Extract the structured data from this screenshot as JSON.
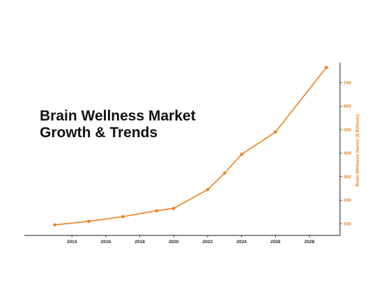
{
  "chart_data": {
    "type": "line",
    "title_lines": [
      "Brain Wellness Market",
      "Growth & Trends"
    ],
    "xlabel": "",
    "ylabel": "Brain Wellness Sector ($ Billions)",
    "x": [
      2013,
      2015,
      2017,
      2019,
      2020,
      2022,
      2023,
      2024,
      2026,
      2029
    ],
    "series": [
      {
        "values": [
          95,
          110,
          130,
          155,
          165,
          245,
          315,
          395,
          490,
          765
        ]
      }
    ],
    "xlim": [
      2011.2,
      2029.8
    ],
    "ylim": [
      50,
      785
    ],
    "xticks": [
      2014,
      2016,
      2018,
      2020,
      2022,
      2024,
      2026,
      2028
    ],
    "yticks": [
      100,
      200,
      300,
      400,
      500,
      600,
      700
    ],
    "y_axis_side": "right",
    "grid": false,
    "legend": "none",
    "colors": {
      "line": "#ee7f1b",
      "axis_text": "#ee7f1b",
      "x_tick_text": "#222222",
      "axis_line": "#1a1a1a"
    }
  }
}
